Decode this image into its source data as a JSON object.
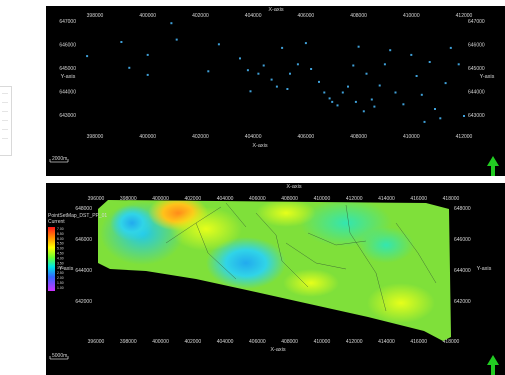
{
  "top_map": {
    "x_axis_label": "X-axis",
    "y_axis_label": "Y-axis",
    "x_ticks": [
      "398000",
      "400000",
      "402000",
      "404000",
      "406000",
      "408000",
      "410000",
      "412000"
    ],
    "y_ticks": [
      "647000",
      "646000",
      "645000",
      "644000",
      "643000"
    ],
    "scale_label": "2000m",
    "point_color": "#3fa0d8",
    "wells": [
      [
        397700,
        645550
      ],
      [
        399000,
        646150
      ],
      [
        399300,
        645050
      ],
      [
        400000,
        645600
      ],
      [
        400000,
        644750
      ],
      [
        400900,
        646950
      ],
      [
        401100,
        646250
      ],
      [
        402300,
        644900
      ],
      [
        402700,
        646050
      ],
      [
        403500,
        645450
      ],
      [
        403800,
        644950
      ],
      [
        404200,
        644800
      ],
      [
        404400,
        645150
      ],
      [
        404700,
        644550
      ],
      [
        404900,
        644250
      ],
      [
        405100,
        645900
      ],
      [
        405400,
        644800
      ],
      [
        405700,
        645200
      ],
      [
        406000,
        646100
      ],
      [
        406200,
        645000
      ],
      [
        406500,
        644450
      ],
      [
        406700,
        644000
      ],
      [
        406900,
        643750
      ],
      [
        407200,
        643450
      ],
      [
        407400,
        644000
      ],
      [
        407600,
        644250
      ],
      [
        407800,
        645150
      ],
      [
        407900,
        643600
      ],
      [
        408000,
        645950
      ],
      [
        408300,
        644800
      ],
      [
        408500,
        643700
      ],
      [
        408600,
        643400
      ],
      [
        408800,
        644300
      ],
      [
        409000,
        645200
      ],
      [
        409200,
        645800
      ],
      [
        409400,
        644000
      ],
      [
        409700,
        643500
      ],
      [
        410000,
        645600
      ],
      [
        410200,
        644700
      ],
      [
        410400,
        643900
      ],
      [
        410700,
        645300
      ],
      [
        410900,
        643300
      ],
      [
        411100,
        642900
      ],
      [
        411300,
        644400
      ],
      [
        411500,
        645900
      ],
      [
        411800,
        645200
      ],
      [
        412000,
        643000
      ],
      [
        412200,
        644800
      ],
      [
        412600,
        645100
      ],
      [
        412900,
        644300
      ],
      [
        413100,
        643300
      ],
      [
        413300,
        645300
      ],
      [
        413600,
        644900
      ],
      [
        413800,
        642850
      ],
      [
        414000,
        642600
      ],
      [
        407000,
        643600
      ],
      [
        408200,
        643200
      ],
      [
        410500,
        642750
      ],
      [
        405300,
        644150
      ],
      [
        403900,
        644050
      ]
    ]
  },
  "bottom_map": {
    "title": "PointSetMap_DST_PP_01",
    "x_axis_label": "X-axis",
    "y_axis_label": "Y-axis",
    "x_ticks": [
      "396000",
      "398000",
      "400000",
      "402000",
      "404000",
      "406000",
      "408000",
      "410000",
      "412000",
      "414000",
      "416000",
      "418000"
    ],
    "y_ticks": [
      "648000",
      "646000",
      "644000",
      "642000"
    ],
    "scale_label": "5000m",
    "legend_header": "Current",
    "legend_values": [
      "7.00",
      "6.50",
      "6.00",
      "5.50",
      "5.00",
      "4.50",
      "4.00",
      "3.50",
      "3.00",
      "2.50",
      "2.00",
      "1.50",
      "1.00"
    ]
  },
  "north_arrow_color": "#22cc22"
}
